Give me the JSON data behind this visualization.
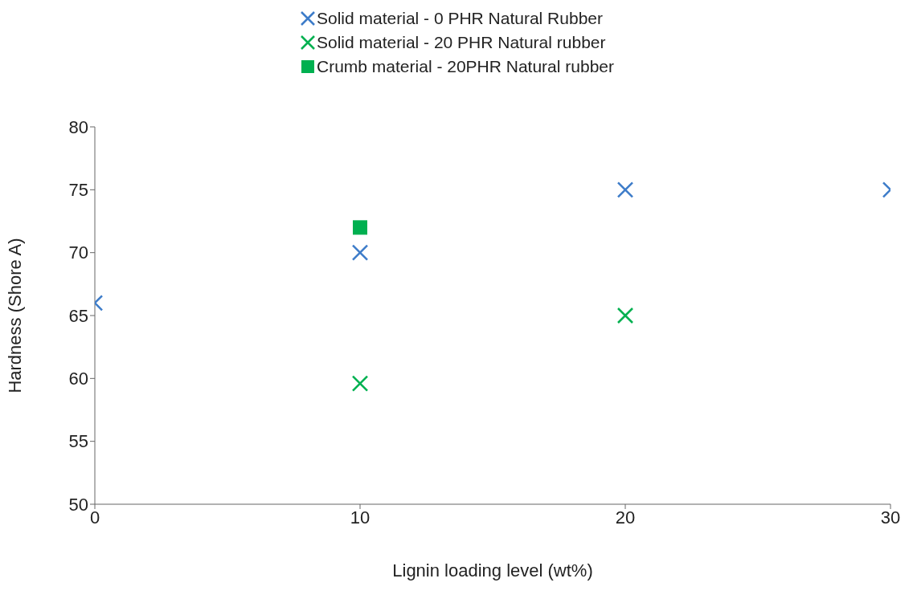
{
  "chart_data": {
    "type": "scatter",
    "xlabel": "Lignin loading level (wt%)",
    "ylabel": "Hardness (Shore A)",
    "xlim": [
      0,
      30
    ],
    "xticks": [
      0,
      10,
      20,
      30
    ],
    "ylim": [
      50,
      80
    ],
    "yticks": [
      50,
      55,
      60,
      65,
      70,
      75,
      80
    ],
    "grid": false,
    "legend": "top",
    "series": [
      {
        "name": "Solid material - 0 PHR Natural Rubber",
        "color": "#3d7cc9",
        "marker": "cross",
        "x": [
          0,
          10,
          20,
          30
        ],
        "values": [
          66,
          70,
          75,
          75
        ]
      },
      {
        "name": "Solid material - 20 PHR Natural rubber",
        "color": "#00b050",
        "marker": "cross",
        "x": [
          10,
          20
        ],
        "values": [
          59.6,
          65
        ]
      },
      {
        "name": "Crumb material - 20PHR Natural rubber",
        "color": "#00b050",
        "marker": "square",
        "x": [
          10
        ],
        "values": [
          72
        ]
      }
    ]
  }
}
